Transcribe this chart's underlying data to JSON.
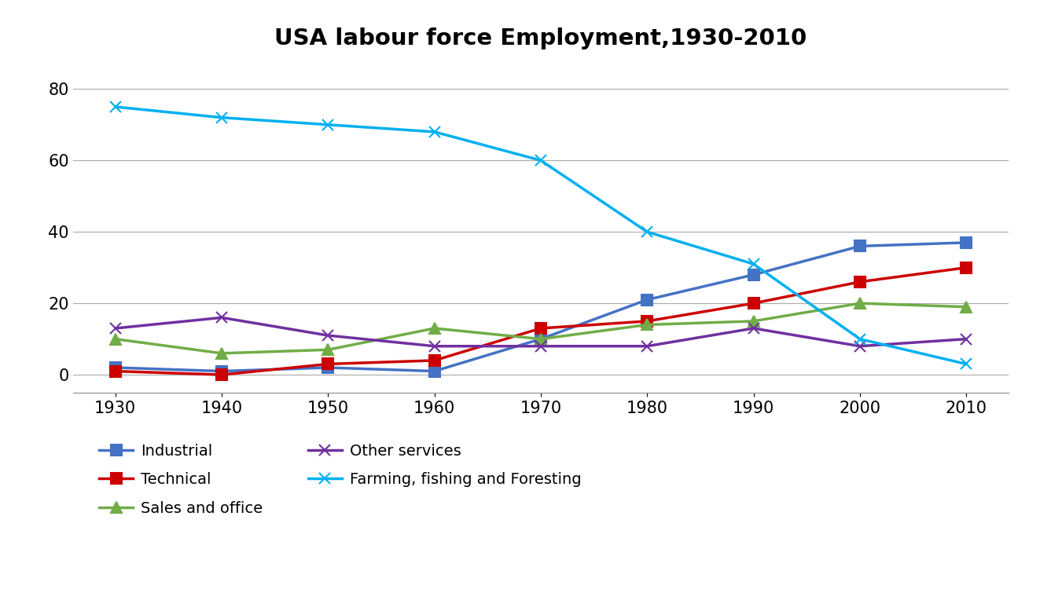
{
  "title": "USA labour force Employment,1930-2010",
  "years": [
    1930,
    1940,
    1950,
    1960,
    1970,
    1980,
    1990,
    2000,
    2010
  ],
  "series": [
    {
      "label": "Industrial",
      "values": [
        2,
        1,
        2,
        1,
        10,
        21,
        28,
        36,
        37
      ],
      "color": "#4472C4",
      "marker": "s",
      "markersize": 10
    },
    {
      "label": "Technical",
      "values": [
        1,
        0,
        3,
        4,
        13,
        15,
        20,
        26,
        30
      ],
      "color": "#CC0000",
      "marker": "s",
      "markersize": 10
    },
    {
      "label": "Sales and office",
      "values": [
        10,
        6,
        7,
        13,
        10,
        14,
        15,
        20,
        19
      ],
      "color": "#70AD47",
      "marker": "^",
      "markersize": 10
    },
    {
      "label": "Other services",
      "values": [
        13,
        16,
        11,
        8,
        8,
        8,
        13,
        8,
        10
      ],
      "color": "#7030A0",
      "marker": "x",
      "markersize": 10
    },
    {
      "label": "Farming, fishing and Foresting",
      "values": [
        75,
        72,
        70,
        68,
        60,
        40,
        31,
        10,
        3
      ],
      "color": "#00B0F0",
      "marker": "x",
      "markersize": 10
    }
  ],
  "legend_order": [
    [
      "Industrial",
      "Technical"
    ],
    [
      "Sales and office",
      "Other services"
    ],
    [
      "Farming, fishing and Foresting"
    ]
  ],
  "ylim": [
    -5,
    88
  ],
  "yticks": [
    0,
    20,
    40,
    60,
    80
  ],
  "background_color": "#FFFFFF",
  "grid_color": "#AAAAAA",
  "title_fontsize": 21,
  "legend_fontsize": 14,
  "tick_fontsize": 15,
  "linewidth": 2.5
}
